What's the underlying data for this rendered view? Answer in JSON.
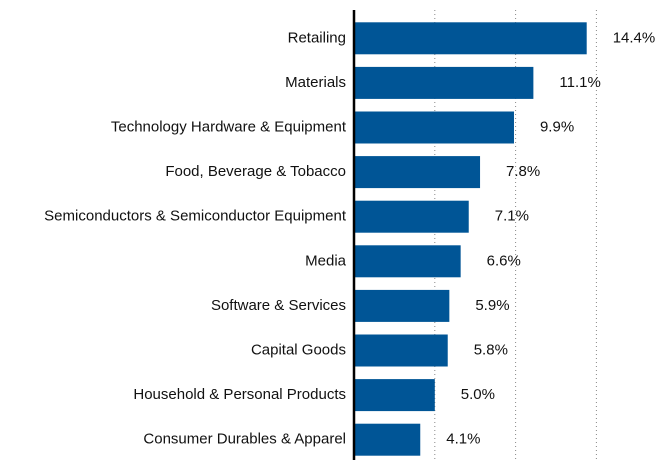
{
  "chart_data": {
    "type": "bar",
    "orientation": "horizontal",
    "categories": [
      "Retailing",
      "Materials",
      "Technology Hardware & Equipment",
      "Food, Beverage & Tobacco",
      "Semiconductors & Semiconductor Equipment",
      "Media",
      "Software & Services",
      "Capital Goods",
      "Household & Personal Products",
      "Consumer Durables & Apparel"
    ],
    "values": [
      14.4,
      11.1,
      9.9,
      7.8,
      7.1,
      6.6,
      5.9,
      5.8,
      5.0,
      4.1
    ],
    "value_labels": [
      "14.4%",
      "11.1%",
      "9.9%",
      "7.8%",
      "7.1%",
      "6.6%",
      "5.9%",
      "5.8%",
      "5.0%",
      "4.1%"
    ],
    "color": "#005596",
    "xlim": [
      0,
      18.75
    ],
    "xticks": [
      5,
      10,
      15
    ],
    "grid": true
  }
}
